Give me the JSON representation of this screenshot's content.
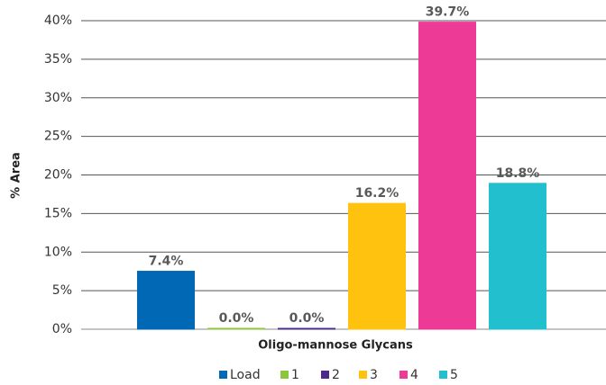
{
  "chart_data": {
    "type": "bar",
    "x_label": "Oligo-mannose Glycans",
    "y_label": "% Area",
    "ylim": [
      0,
      40
    ],
    "yticks": [
      {
        "value": 0,
        "label": "0%"
      },
      {
        "value": 5,
        "label": "5%"
      },
      {
        "value": 10,
        "label": "10%"
      },
      {
        "value": 15,
        "label": "15%"
      },
      {
        "value": 20,
        "label": "20%"
      },
      {
        "value": 25,
        "label": "25%"
      },
      {
        "value": 30,
        "label": "30%"
      },
      {
        "value": 35,
        "label": "35%"
      },
      {
        "value": 40,
        "label": "40%"
      }
    ],
    "grid": true,
    "legend": "bottom",
    "series": [
      {
        "name": "Load",
        "color": "#0068b4",
        "values": [
          7.4
        ],
        "value_labels": [
          "7.4%"
        ]
      },
      {
        "name": "1",
        "color": "#8cc63f",
        "values": [
          0.0
        ],
        "value_labels": [
          "0.0%"
        ]
      },
      {
        "name": "2",
        "color": "#4b2c8c",
        "values": [
          0.0
        ],
        "value_labels": [
          "0.0%"
        ]
      },
      {
        "name": "3",
        "color": "#ffc20e",
        "values": [
          16.2
        ],
        "value_labels": [
          "16.2%"
        ]
      },
      {
        "name": "4",
        "color": "#ee3a97",
        "values": [
          39.7
        ],
        "value_labels": [
          "39.7%"
        ]
      },
      {
        "name": "5",
        "color": "#22c0cf",
        "values": [
          18.8
        ],
        "value_labels": [
          "18.8%"
        ]
      }
    ]
  }
}
